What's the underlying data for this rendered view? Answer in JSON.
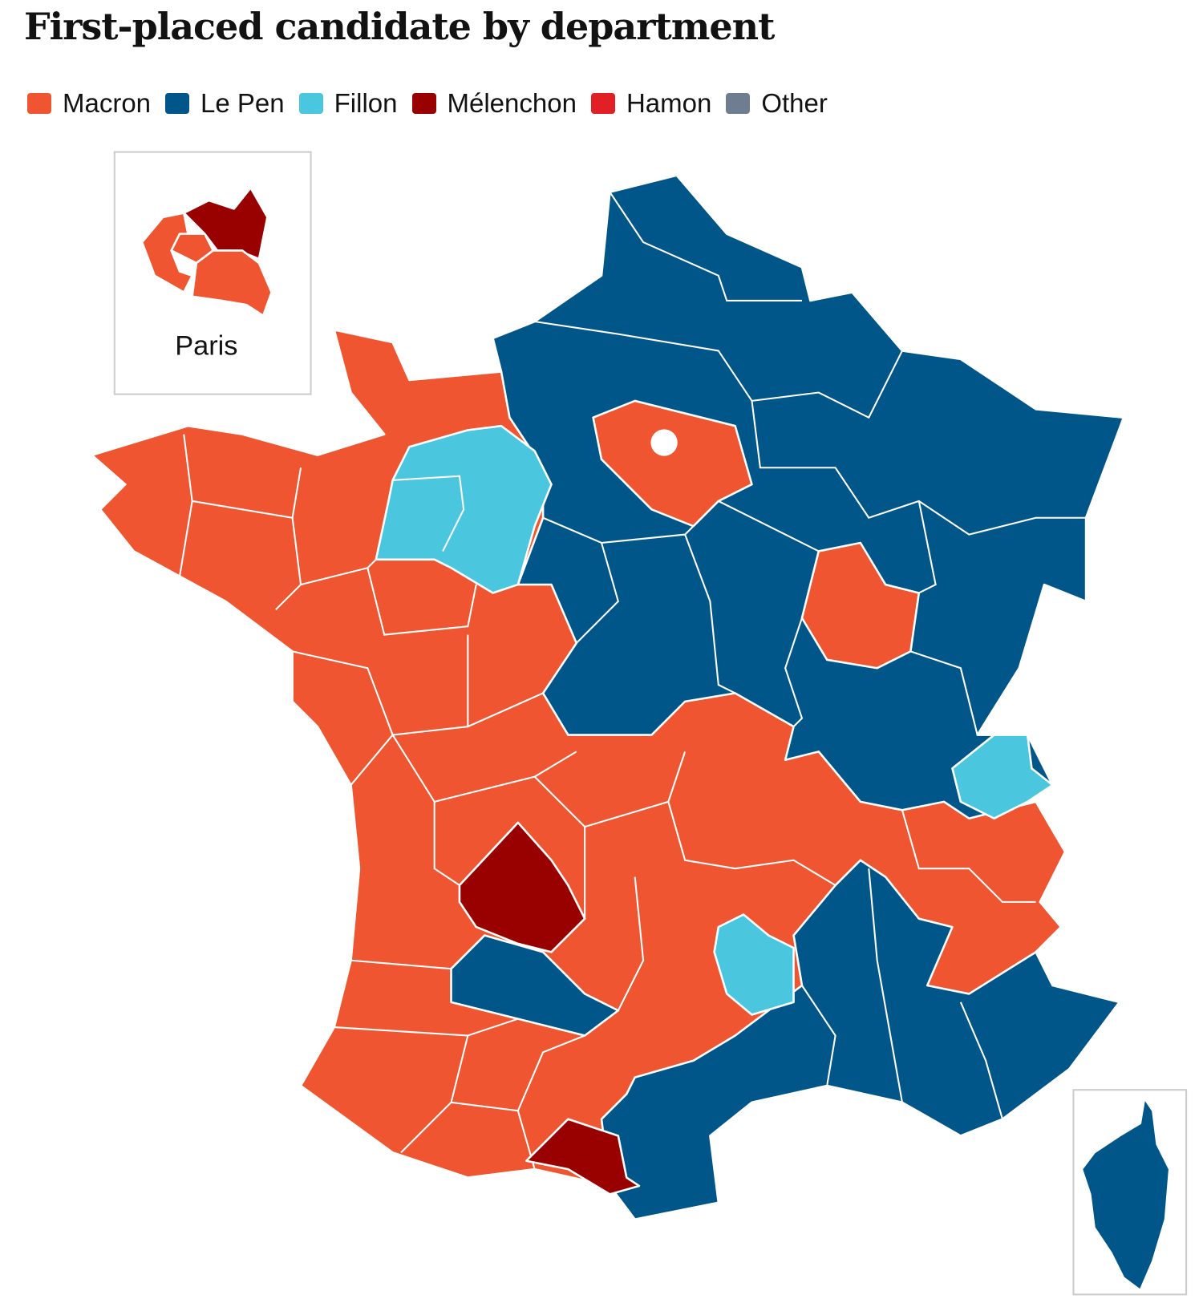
{
  "header": {
    "title": "First-placed candidate by department"
  },
  "legend": [
    {
      "label": "Macron",
      "color": "#ef5530"
    },
    {
      "label": "Le Pen",
      "color": "#005689"
    },
    {
      "label": "Fillon",
      "color": "#4bc6df"
    },
    {
      "label": "Mélenchon",
      "color": "#990000"
    },
    {
      "label": "Hamon",
      "color": "#e31f26"
    },
    {
      "label": "Other",
      "color": "#6f7d91"
    }
  ],
  "insets": {
    "paris": {
      "label": "Paris"
    }
  }
}
